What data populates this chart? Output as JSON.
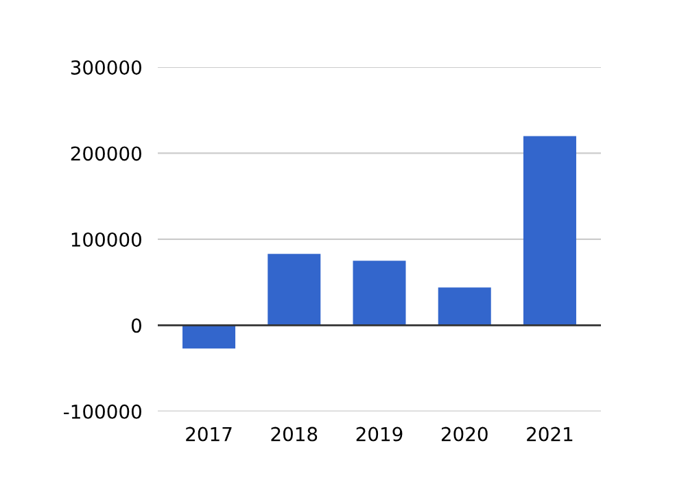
{
  "chart_data": {
    "type": "bar",
    "categories": [
      "2017",
      "2018",
      "2019",
      "2020",
      "2021"
    ],
    "values": [
      -27000,
      83000,
      75000,
      44000,
      220000
    ],
    "color": "#3366cc",
    "ylim": [
      -100000,
      300000
    ],
    "yticks": [
      -100000,
      0,
      100000,
      200000,
      300000
    ],
    "grid": "y"
  }
}
